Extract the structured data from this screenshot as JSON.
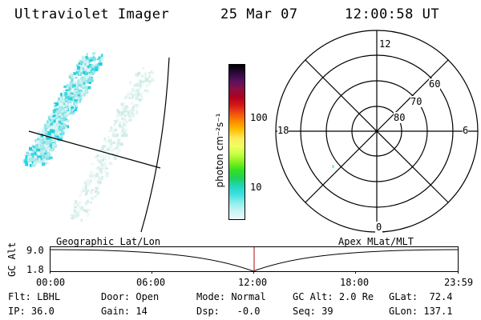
{
  "header": {
    "instrument": "Ultraviolet Imager",
    "date": "25 Mar 07",
    "time": "12:00:58 UT"
  },
  "colorbar": {
    "unit_label": "photon cm⁻²s⁻¹",
    "ticks": [
      "100",
      "10"
    ],
    "colors": [
      "#000000",
      "#2a0a3a",
      "#5a1060",
      "#8a1040",
      "#b00020",
      "#d81818",
      "#f05010",
      "#ff8a00",
      "#ffc000",
      "#ffe85a",
      "#f0ff60",
      "#c8ff40",
      "#80f020",
      "#30e020",
      "#20d060",
      "#20d8c0",
      "#40e0e0",
      "#90eeee",
      "#c8f4f4",
      "#eef8f8"
    ]
  },
  "polar_plot": {
    "mlt_labels": {
      "top": "12",
      "left": "18",
      "right": "6",
      "bottom": "0"
    },
    "lat_labels": [
      "60",
      "70",
      "80"
    ]
  },
  "timeline": {
    "axis_name": "GC Alt",
    "y_ticks": [
      "9.0",
      "1.8"
    ],
    "left_caption": "Geographic Lat/Lon",
    "right_caption": "Apex MLat/MLT",
    "x_ticks": [
      "00:00",
      "06:00",
      "12:00",
      "18:00",
      "23:59"
    ],
    "current_time_fraction": 0.5
  },
  "info_row1": [
    {
      "label": "Flt:",
      "value": "LBHL"
    },
    {
      "label": "Door:",
      "value": "Open"
    },
    {
      "label": "Mode:",
      "value": "Normal"
    },
    {
      "label": "GC Alt:",
      "value": "2.0 Re"
    },
    {
      "label": "GLat:",
      "value": "72.4"
    }
  ],
  "info_row2": [
    {
      "label": "IP:",
      "value": "36.0"
    },
    {
      "label": "Gain:",
      "value": "14"
    },
    {
      "label": "Dsp:",
      "value": "-0.0"
    },
    {
      "label": "Seq:",
      "value": "39"
    },
    {
      "label": "GLon:",
      "value": "137.1"
    }
  ]
}
